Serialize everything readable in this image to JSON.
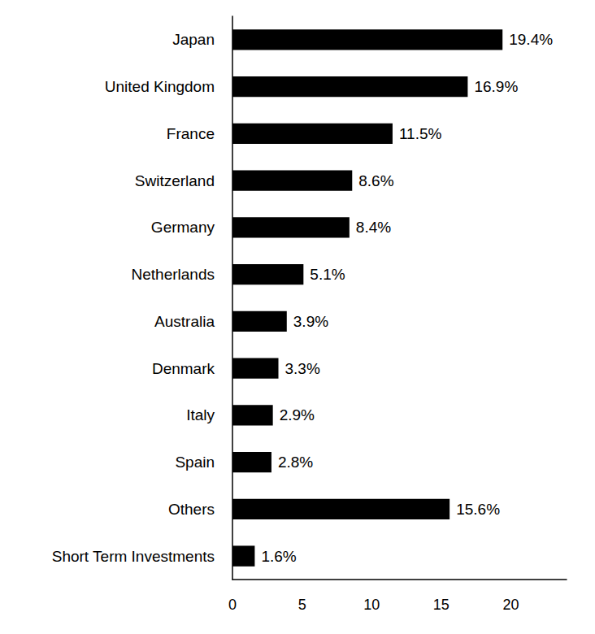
{
  "chart_data": {
    "type": "bar",
    "orientation": "horizontal",
    "categories": [
      "Japan",
      "United Kingdom",
      "France",
      "Switzerland",
      "Germany",
      "Netherlands",
      "Australia",
      "Denmark",
      "Italy",
      "Spain",
      "Others",
      "Short Term Investments"
    ],
    "values": [
      19.4,
      16.9,
      11.5,
      8.6,
      8.4,
      5.1,
      3.9,
      3.3,
      2.9,
      2.8,
      15.6,
      1.6
    ],
    "value_labels": [
      "19.4%",
      "16.9%",
      "11.5%",
      "8.6%",
      "8.4%",
      "5.1%",
      "3.9%",
      "3.3%",
      "2.9%",
      "2.8%",
      "15.6%",
      "1.6%"
    ],
    "color": "#000000",
    "xlim": [
      0,
      24
    ],
    "xticks": [
      0,
      5,
      10,
      15,
      20
    ],
    "grid": false,
    "data_labels": true
  }
}
